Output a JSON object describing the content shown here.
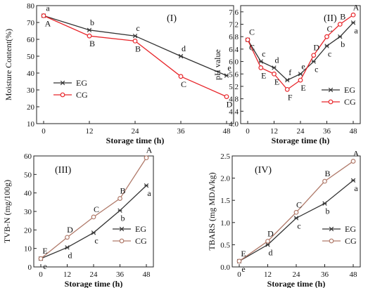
{
  "chart_data": [
    {
      "type": "line",
      "panel_label": "(I)",
      "xlabel": "Storage time (h)",
      "ylabel": "Moisture Content(%)",
      "x": [
        0,
        12,
        24,
        36,
        48
      ],
      "x_ticks": [
        "0",
        "12",
        "24",
        "36",
        "48"
      ],
      "ylim": [
        10,
        80
      ],
      "y_ticks": [
        "10",
        "20",
        "30",
        "40",
        "50",
        "60",
        "70",
        "80"
      ],
      "legend_position": "lower-left",
      "series": [
        {
          "name": "EG",
          "color": "#333333",
          "marker": "asterisk",
          "values": [
            74,
            65.5,
            62,
            50,
            38.5
          ],
          "labels": [
            "a",
            "b",
            "c",
            "d",
            "e"
          ],
          "label_pos": "above"
        },
        {
          "name": "CG",
          "color": "#e8262b",
          "marker": "circle",
          "values": [
            74,
            62,
            59,
            38,
            26
          ],
          "labels": [
            "A",
            "B",
            "B",
            "C",
            "D"
          ],
          "label_pos": "below"
        }
      ]
    },
    {
      "type": "line",
      "panel_label": "(II)",
      "xlabel": "Storage time (h)",
      "ylabel": "pH value",
      "x": [
        0,
        6,
        12,
        18,
        24,
        30,
        36,
        42,
        48
      ],
      "x_ticks": [
        "0",
        "12",
        "24",
        "36",
        "48"
      ],
      "ylim": [
        4.0,
        7.8
      ],
      "y_ticks": [
        "4.0",
        "4.4",
        "4.8",
        "5.2",
        "5.6",
        "6.0",
        "6.4",
        "6.8",
        "7.2",
        "7.6"
      ],
      "legend_position": "lower-right",
      "series": [
        {
          "name": "EG",
          "color": "#333333",
          "marker": "asterisk",
          "values": [
            6.7,
            6.0,
            5.8,
            5.4,
            5.6,
            6.0,
            6.5,
            6.8,
            7.25
          ],
          "labels": [
            "C",
            "c",
            "d",
            "f",
            "e",
            "c",
            "c",
            "b",
            "a"
          ],
          "label_pos": "mixed"
        },
        {
          "name": "CG",
          "color": "#e8262b",
          "marker": "circle",
          "values": [
            6.7,
            5.8,
            5.6,
            5.1,
            5.4,
            6.2,
            6.8,
            7.2,
            7.5
          ],
          "labels": [
            "C",
            "E",
            "E",
            "F",
            "E",
            "D",
            "C",
            "B",
            "A"
          ],
          "label_pos": "mixed"
        }
      ]
    },
    {
      "type": "line",
      "panel_label": "(III)",
      "xlabel": "Storage time (h)",
      "ylabel": "TVB-N (mg/100g)",
      "x": [
        0,
        12,
        24,
        36,
        48
      ],
      "x_ticks": [
        "0",
        "12",
        "24",
        "36",
        "48"
      ],
      "ylim": [
        0,
        60
      ],
      "y_ticks": [
        "0",
        "10",
        "20",
        "30",
        "40",
        "50",
        "60"
      ],
      "legend_position": "lower-right",
      "series": [
        {
          "name": "EG",
          "color": "#333333",
          "marker": "asterisk",
          "values": [
            4.5,
            10.5,
            18.5,
            30.5,
            44
          ],
          "labels": [
            "e",
            "d",
            "c",
            "b",
            "a"
          ],
          "label_pos": "below"
        },
        {
          "name": "CG",
          "color": "#b07a6a",
          "marker": "circle",
          "values": [
            4.5,
            16,
            27,
            37,
            59
          ],
          "labels": [
            "E",
            "D",
            "C",
            "B",
            "A"
          ],
          "label_pos": "above"
        }
      ]
    },
    {
      "type": "line",
      "panel_label": "(IV)",
      "xlabel": "Storage time (h)",
      "ylabel": "TBARS (mg MDA/kg)",
      "x": [
        0,
        12,
        24,
        36,
        48
      ],
      "x_ticks": [
        "0",
        "12",
        "24",
        "36",
        "48"
      ],
      "ylim": [
        0,
        2.5
      ],
      "y_ticks": [
        "0.0",
        "0.5",
        "1.0",
        "1.5",
        "2.0",
        "2.5"
      ],
      "legend_position": "lower-right",
      "series": [
        {
          "name": "EG",
          "color": "#333333",
          "marker": "asterisk",
          "values": [
            0.13,
            0.5,
            1.1,
            1.43,
            1.95
          ],
          "labels": [
            "e",
            "d",
            "c",
            "b",
            "a"
          ],
          "label_pos": "below"
        },
        {
          "name": "CG",
          "color": "#b07a6a",
          "marker": "circle",
          "values": [
            0.13,
            0.58,
            1.23,
            1.93,
            2.38
          ],
          "labels": [
            "E",
            "D",
            "C",
            "B",
            "A"
          ],
          "label_pos": "above"
        }
      ]
    }
  ]
}
